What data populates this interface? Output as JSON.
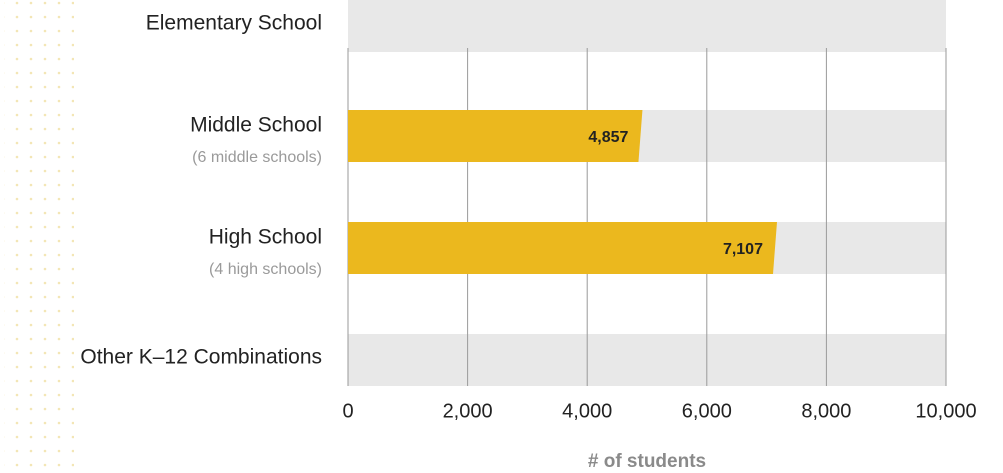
{
  "chart_data": {
    "type": "bar",
    "orientation": "horizontal",
    "categories": [
      "Elementary School",
      "Middle School",
      "High School",
      "Other K–12 Combinations"
    ],
    "sublabels": [
      null,
      "(6 middle schools)",
      "(4 high schools)",
      null
    ],
    "values": [
      null,
      4857,
      7107,
      null
    ],
    "value_labels": [
      null,
      "4,857",
      "7,107",
      null
    ],
    "color": "#ebb81e",
    "xlabel": "# of students",
    "xlim": [
      0,
      10000
    ],
    "xticks": [
      0,
      {
        "value": 2000,
        "label": "2,000"
      },
      {
        "value": 4000,
        "label": "4,000"
      },
      {
        "value": 6000,
        "label": "6,000"
      },
      {
        "value": 8000,
        "label": "8,000"
      },
      {
        "value": 10000,
        "label": "10,000"
      }
    ],
    "grid": true
  }
}
